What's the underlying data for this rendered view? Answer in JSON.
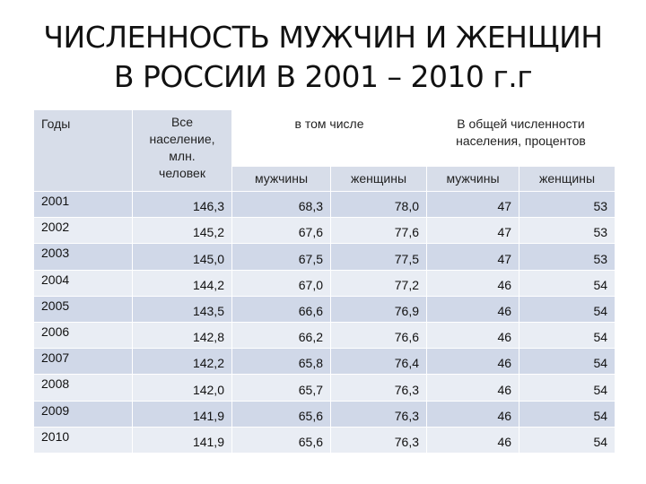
{
  "title": [
    "ЧИСЛЕННОСТЬ МУЖЧИН И ЖЕНЩИН",
    "В РОССИИ В 2001 – 2010 г.г"
  ],
  "table": {
    "header": {
      "year": "Годы",
      "total": "Все население, млн. человек",
      "including": "в том числе",
      "share": "В общей численности населения, процентов",
      "sub": [
        "мужчины",
        "женщины",
        "мужчины",
        "женщины"
      ]
    },
    "rows": [
      [
        "2001",
        "146,3",
        "68,3",
        "78,0",
        "47",
        "53"
      ],
      [
        "2002",
        "145,2",
        "67,6",
        "77,6",
        "47",
        "53"
      ],
      [
        "2003",
        "145,0",
        "67,5",
        "77,5",
        "47",
        "53"
      ],
      [
        "2004",
        "144,2",
        "67,0",
        "77,2",
        "46",
        "54"
      ],
      [
        "2005",
        "143,5",
        "66,6",
        "76,9",
        "46",
        "54"
      ],
      [
        "2006",
        "142,8",
        "66,2",
        "76,6",
        "46",
        "54"
      ],
      [
        "2007",
        "142,2",
        "65,8",
        "76,4",
        "46",
        "54"
      ],
      [
        "2008",
        "142,0",
        "65,7",
        "76,3",
        "46",
        "54"
      ],
      [
        "2009",
        "141,9",
        "65,6",
        "76,3",
        "46",
        "54"
      ],
      [
        "2010",
        "141,9",
        "65,6",
        "76,3",
        "46",
        "54"
      ]
    ]
  }
}
